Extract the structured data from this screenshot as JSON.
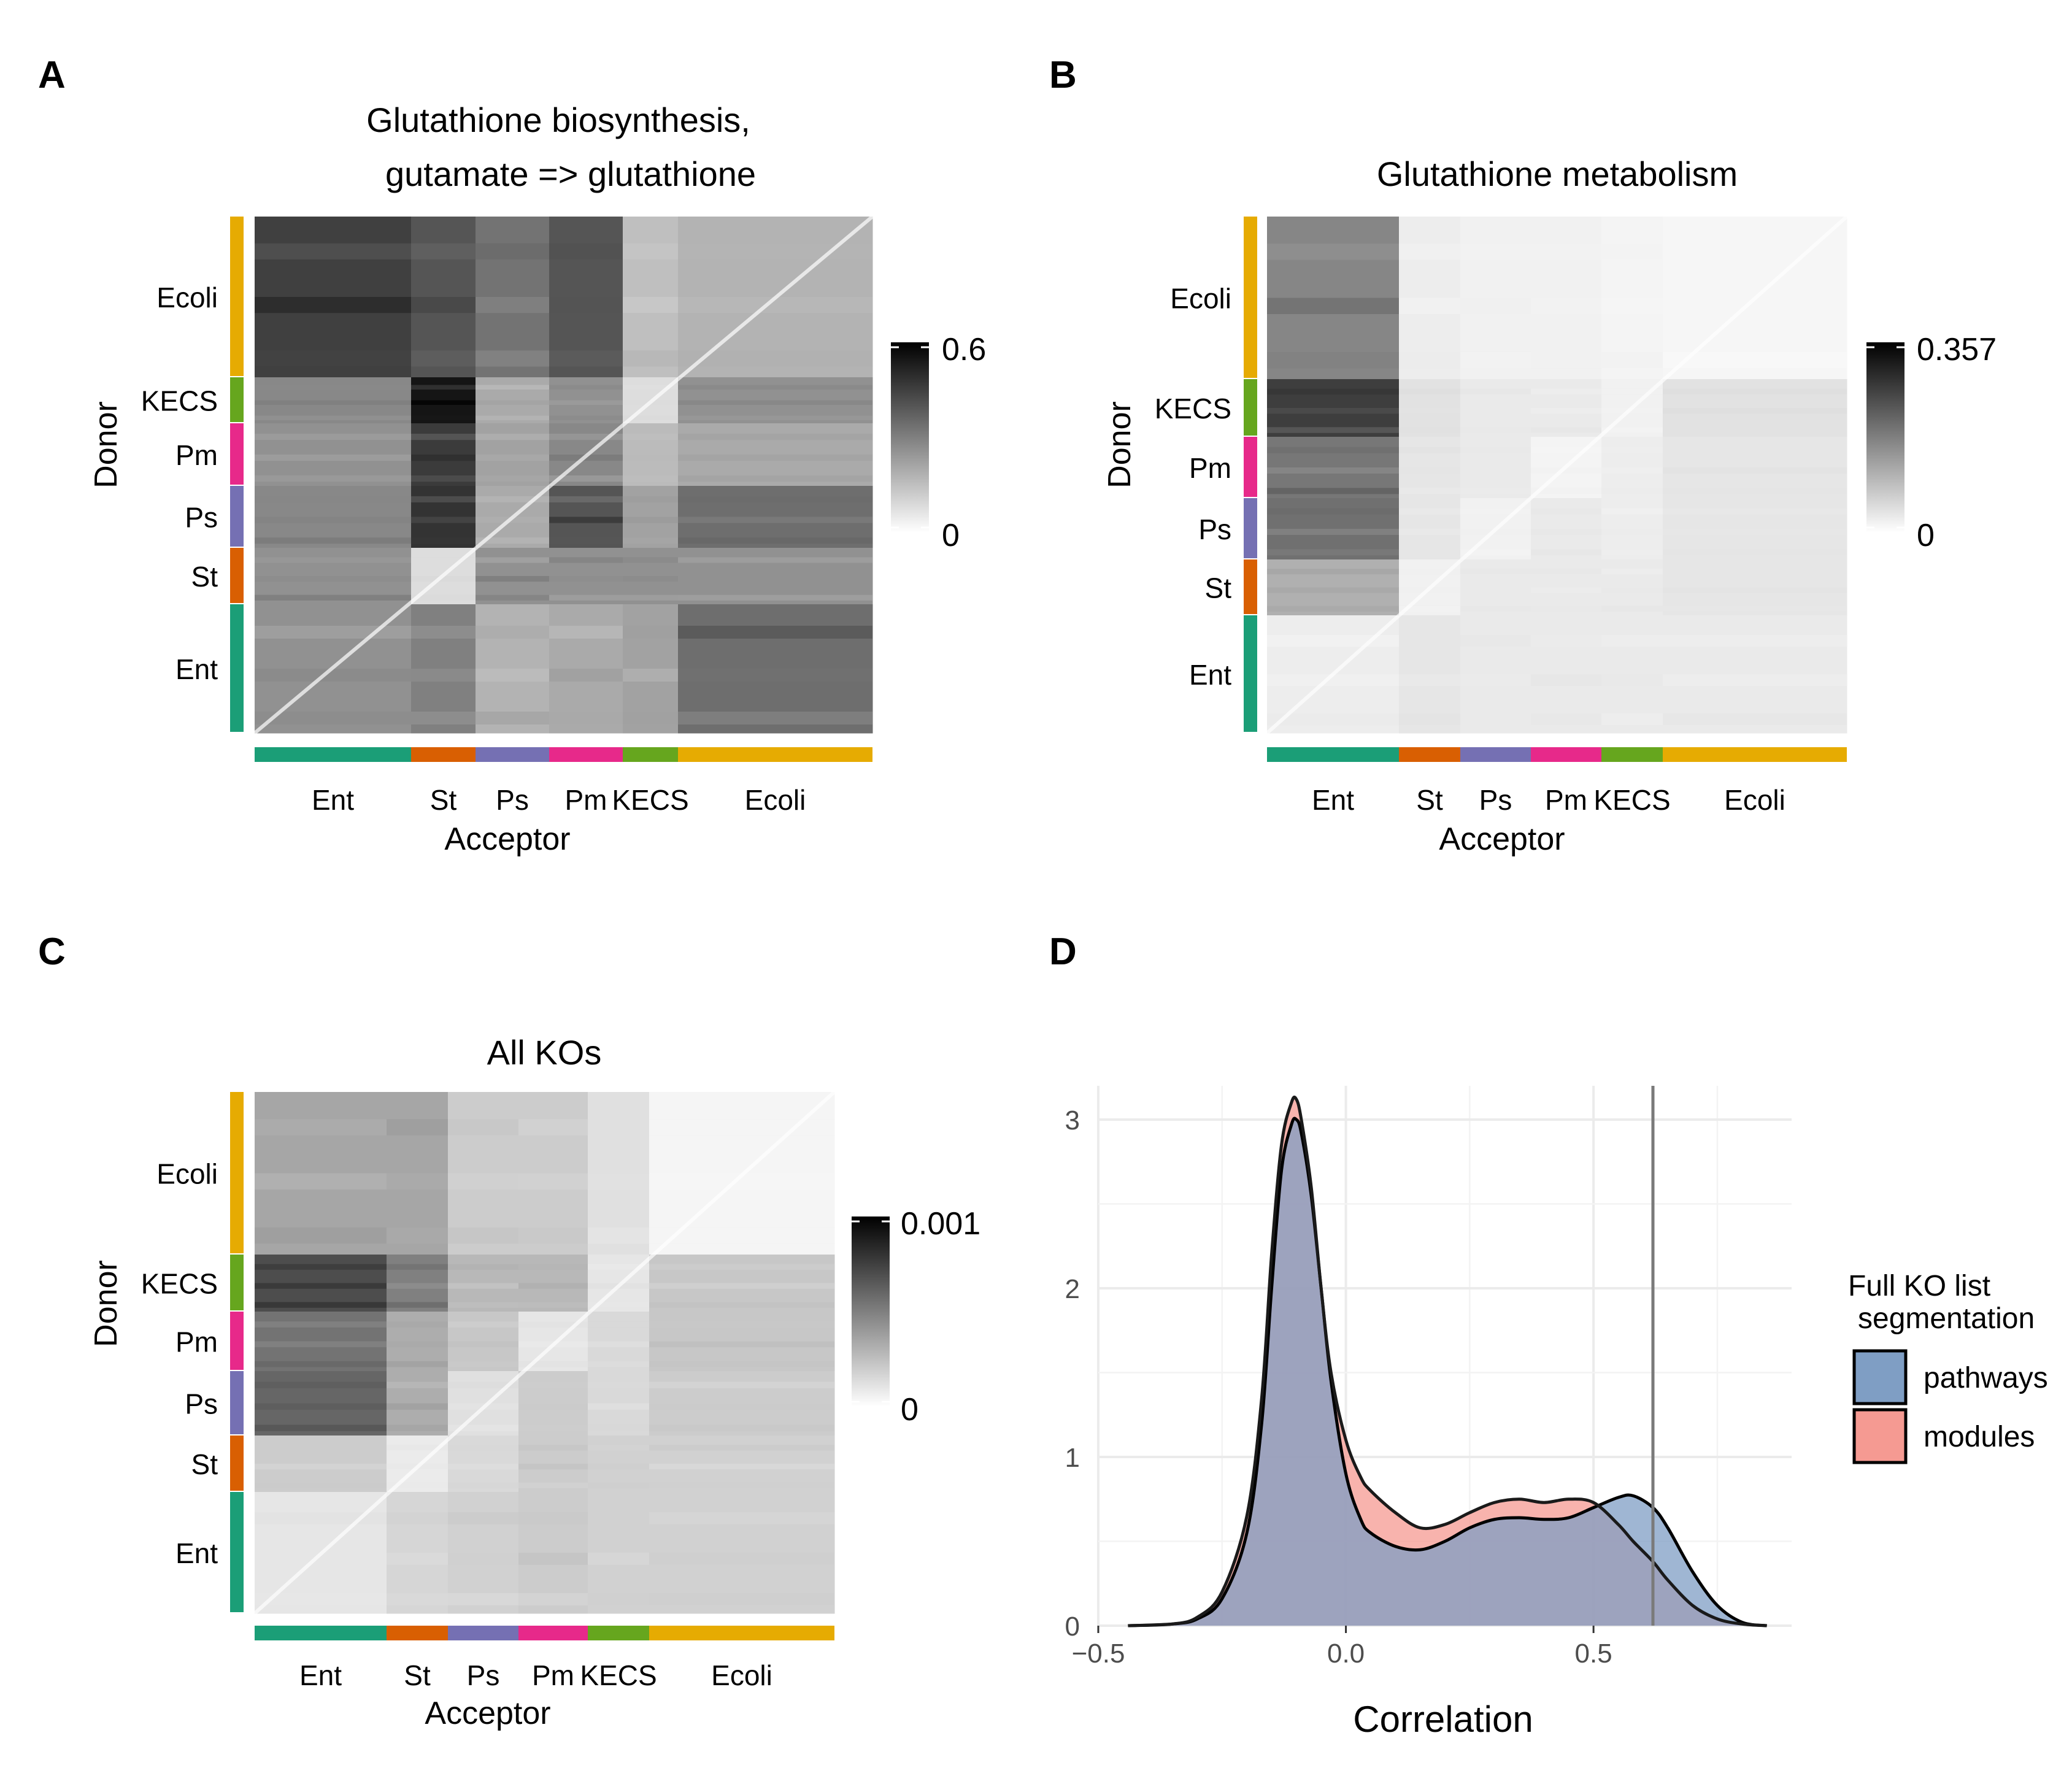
{
  "panels": {
    "A": {
      "letter": "A",
      "title": [
        "Glutathione biosynthesis,",
        "gutamate => glutathione"
      ],
      "ylabel": "Donor",
      "xlabel": "Acceptor",
      "legend_max": "0.6",
      "legend_min": "0"
    },
    "B": {
      "letter": "B",
      "title": [
        "Glutathione metabolism"
      ],
      "ylabel": "Donor",
      "xlabel": "Acceptor",
      "legend_max": "0.357",
      "legend_min": "0"
    },
    "C": {
      "letter": "C",
      "title": [
        "All KOs"
      ],
      "ylabel": "Donor",
      "xlabel": "Acceptor",
      "legend_max": "0.001",
      "legend_min": "0"
    },
    "D": {
      "letter": "D",
      "xlabel": "Correlation",
      "legend_title": [
        "Full KO list",
        "segmentation"
      ],
      "legend_items": [
        "pathways",
        "modules"
      ]
    }
  },
  "groups": {
    "donor_top_to_bottom": [
      "Ecoli",
      "KECS",
      "Pm",
      "Ps",
      "St",
      "Ent"
    ],
    "acceptor_left_to_right": [
      "Ent",
      "St",
      "Ps",
      "Pm",
      "KECS",
      "Ecoli"
    ],
    "colors": {
      "Ent": "#1b9e77",
      "St": "#d95f02",
      "Ps": "#7570b3",
      "Pm": "#e7298a",
      "KECS": "#66a61e",
      "Ecoli": "#e6ab02"
    }
  },
  "colors": {
    "pathways_fill": "#7f9ec4",
    "modules_fill": "#f59a92",
    "vline": "#7a7a7a",
    "grid": "#ebebeb"
  },
  "chart_data": [
    {
      "panel": "A",
      "type": "heatmap",
      "title": "Glutathione biosynthesis, gutamate => glutathione",
      "xlabel": "Acceptor",
      "ylabel": "Donor",
      "color_scale": {
        "min": 0,
        "max": 0.6,
        "low": "#ffffff",
        "high": "#000000"
      },
      "row_groups": [
        "Ecoli",
        "KECS",
        "Pm",
        "Ps",
        "St",
        "Ent"
      ],
      "col_groups": [
        "Ent",
        "St",
        "Ps",
        "Pm",
        "KECS",
        "Ecoli"
      ],
      "block_values": [
        [
          0.45,
          0.4,
          0.33,
          0.4,
          0.15,
          0.18
        ],
        [
          0.28,
          0.55,
          0.2,
          0.26,
          0.08,
          0.26
        ],
        [
          0.26,
          0.46,
          0.22,
          0.28,
          0.16,
          0.2
        ],
        [
          0.28,
          0.48,
          0.2,
          0.4,
          0.22,
          0.34
        ],
        [
          0.26,
          0.08,
          0.26,
          0.26,
          0.26,
          0.26
        ],
        [
          0.26,
          0.3,
          0.18,
          0.2,
          0.22,
          0.34
        ]
      ]
    },
    {
      "panel": "B",
      "type": "heatmap",
      "title": "Glutathione metabolism",
      "xlabel": "Acceptor",
      "ylabel": "Donor",
      "color_scale": {
        "min": 0,
        "max": 0.357,
        "low": "#ffffff",
        "high": "#000000"
      },
      "row_groups": [
        "Ecoli",
        "KECS",
        "Pm",
        "Ps",
        "St",
        "Ent"
      ],
      "col_groups": [
        "Ent",
        "St",
        "Ps",
        "Pm",
        "KECS",
        "Ecoli"
      ],
      "block_values": [
        [
          0.17,
          0.025,
          0.02,
          0.02,
          0.015,
          0.012
        ],
        [
          0.27,
          0.04,
          0.03,
          0.03,
          0.02,
          0.04
        ],
        [
          0.19,
          0.035,
          0.03,
          0.015,
          0.025,
          0.035
        ],
        [
          0.2,
          0.035,
          0.02,
          0.03,
          0.025,
          0.035
        ],
        [
          0.11,
          0.02,
          0.03,
          0.03,
          0.03,
          0.035
        ],
        [
          0.025,
          0.035,
          0.03,
          0.03,
          0.03,
          0.03
        ]
      ]
    },
    {
      "panel": "C",
      "type": "heatmap",
      "title": "All KOs",
      "xlabel": "Acceptor",
      "ylabel": "Donor",
      "color_scale": {
        "min": 0,
        "max": 0.001,
        "low": "#ffffff",
        "high": "#000000"
      },
      "row_groups": [
        "Ecoli",
        "KECS",
        "Pm",
        "Ps",
        "St",
        "Ent"
      ],
      "col_groups": [
        "Ent",
        "St",
        "Ps",
        "Pm",
        "KECS",
        "Ecoli"
      ],
      "block_values": [
        [
          0.00035,
          0.00035,
          0.0002,
          0.0002,
          0.00012,
          4e-05
        ],
        [
          0.0007,
          0.0005,
          0.00028,
          0.00028,
          0.0001,
          0.00022
        ],
        [
          0.00055,
          0.00032,
          0.00022,
          0.0001,
          0.00015,
          0.00022
        ],
        [
          0.0006,
          0.00032,
          0.00012,
          0.0002,
          0.00015,
          0.0002
        ],
        [
          0.0002,
          8e-05,
          0.00015,
          0.0002,
          0.00018,
          0.00018
        ],
        [
          0.0001,
          0.00016,
          0.00018,
          0.0002,
          0.00018,
          0.00018
        ]
      ]
    },
    {
      "panel": "D",
      "type": "area",
      "xlabel": "Correlation",
      "ylabel": "",
      "xlim": [
        -0.5,
        0.9
      ],
      "ylim": [
        0,
        3.2
      ],
      "xticks": [
        "−0.5",
        "0.0",
        "0.5"
      ],
      "yticks": [
        "0",
        "1",
        "2",
        "3"
      ],
      "vline": 0.62,
      "legend_title": "Full KO list segmentation",
      "grid": true,
      "legend_position": "right",
      "series": [
        {
          "name": "pathways",
          "x": [
            -0.44,
            -0.35,
            -0.3,
            -0.25,
            -0.2,
            -0.17,
            -0.15,
            -0.13,
            -0.11,
            -0.1,
            -0.09,
            -0.07,
            -0.05,
            -0.03,
            0.0,
            0.03,
            0.05,
            0.1,
            0.15,
            0.2,
            0.25,
            0.3,
            0.35,
            0.4,
            0.45,
            0.5,
            0.55,
            0.58,
            0.62,
            0.65,
            0.7,
            0.75,
            0.8,
            0.85
          ],
          "y": [
            0.0,
            0.01,
            0.04,
            0.16,
            0.55,
            1.2,
            2.0,
            2.7,
            2.97,
            3.0,
            2.92,
            2.55,
            2.0,
            1.45,
            0.9,
            0.63,
            0.55,
            0.47,
            0.45,
            0.5,
            0.58,
            0.63,
            0.64,
            0.63,
            0.64,
            0.7,
            0.76,
            0.77,
            0.7,
            0.58,
            0.32,
            0.12,
            0.02,
            0.0
          ]
        },
        {
          "name": "modules",
          "x": [
            -0.44,
            -0.35,
            -0.3,
            -0.25,
            -0.2,
            -0.17,
            -0.15,
            -0.13,
            -0.11,
            -0.1,
            -0.09,
            -0.07,
            -0.05,
            -0.03,
            0.0,
            0.03,
            0.05,
            0.1,
            0.15,
            0.2,
            0.25,
            0.3,
            0.35,
            0.4,
            0.45,
            0.5,
            0.55,
            0.58,
            0.62,
            0.65,
            0.7,
            0.75,
            0.8,
            0.85
          ],
          "y": [
            0.0,
            0.01,
            0.05,
            0.2,
            0.65,
            1.35,
            2.2,
            2.85,
            3.1,
            3.12,
            3.0,
            2.6,
            2.0,
            1.5,
            1.1,
            0.88,
            0.8,
            0.67,
            0.58,
            0.6,
            0.67,
            0.73,
            0.75,
            0.73,
            0.75,
            0.73,
            0.6,
            0.5,
            0.38,
            0.27,
            0.12,
            0.04,
            0.01,
            0.0
          ]
        }
      ]
    }
  ]
}
